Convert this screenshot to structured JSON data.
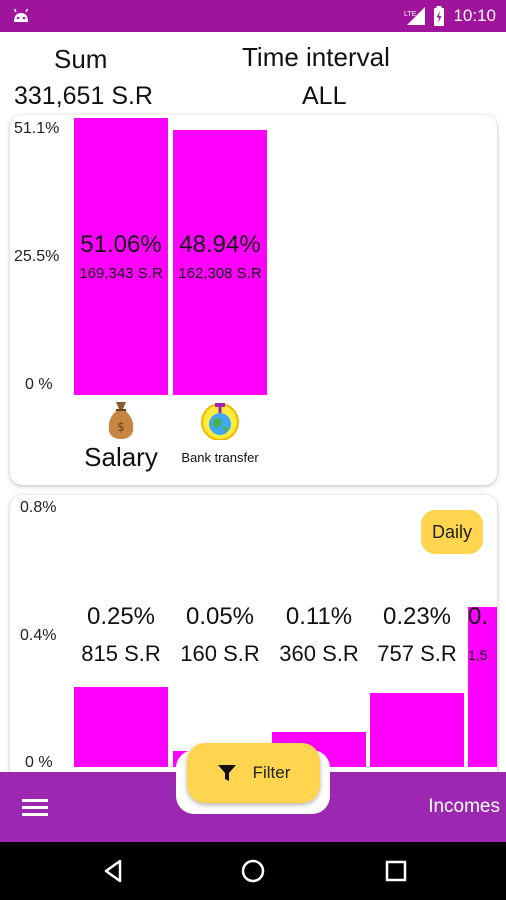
{
  "status_bar": {
    "network": "LTE",
    "time": "10:10"
  },
  "header": {
    "sum_label": "Sum",
    "sum_value": "331,651 S.R",
    "interval_label": "Time interval",
    "interval_value": "ALL"
  },
  "category_chart": {
    "y_ticks": [
      "51.1%",
      "25.5%",
      "0 %"
    ],
    "bars": [
      {
        "percent": "51.06%",
        "amount": "169,343 S.R",
        "label": "Salary",
        "icon": "money-bag-icon",
        "value": 51.06
      },
      {
        "percent": "48.94%",
        "amount": "162,308 S.R",
        "label": "Bank transfer",
        "icon": "globe-icon",
        "value": 48.94
      }
    ],
    "ymax": 51.1
  },
  "daily_chart": {
    "toggle_label": "Daily",
    "y_ticks": [
      "0.8%",
      "0.4%",
      "0 %"
    ],
    "ymax": 0.8,
    "bars": [
      {
        "percent": "0.25%",
        "amount": "815 S.R",
        "value": 0.25
      },
      {
        "percent": "0.05%",
        "amount": "160 S.R",
        "value": 0.05
      },
      {
        "percent": "0.11%",
        "amount": "360 S.R",
        "value": 0.11
      },
      {
        "percent": "0.23%",
        "amount": "757 S.R",
        "value": 0.23
      },
      {
        "percent": "0.",
        "amount": "1,5",
        "value": 0.5
      }
    ]
  },
  "chart_data": [
    {
      "type": "bar",
      "categories": [
        "Salary",
        "Bank transfer"
      ],
      "values": [
        51.06,
        48.94
      ],
      "ylim": [
        0,
        51.1
      ],
      "y_ticks": [
        "51.1%",
        "25.5%",
        "0 %"
      ]
    },
    {
      "type": "bar",
      "values": [
        0.25,
        0.05,
        0.11,
        0.23,
        0.5
      ],
      "ylim": [
        0,
        0.8
      ],
      "y_ticks": [
        "0.8%",
        "0.4%",
        "0 %"
      ]
    }
  ],
  "filter": {
    "label": "Filter"
  },
  "bottom_bar": {
    "title": "Incomes"
  },
  "colors": {
    "primary": "#9c27b0",
    "bar": "#ff00ff",
    "accent": "#ffd54f",
    "status": "#a0149b"
  }
}
